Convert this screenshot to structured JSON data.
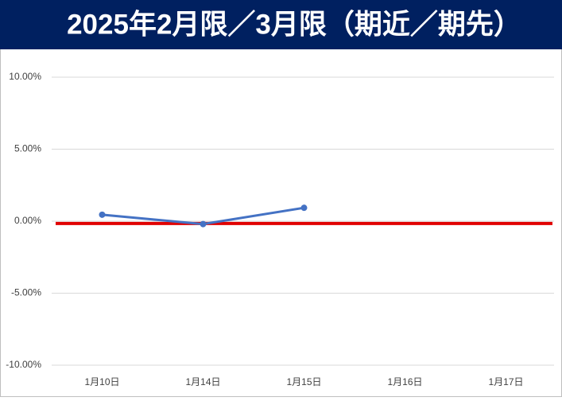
{
  "chart_data": {
    "type": "line",
    "title": "2025年2月限／3月限（期近／期先）",
    "categories": [
      "1月10日",
      "1月14日",
      "1月15日",
      "1月16日",
      "1月17日"
    ],
    "series": [
      {
        "color": "#4472c4",
        "values": [
          0.45,
          -0.2,
          0.93,
          null,
          null
        ]
      }
    ],
    "reference_line": {
      "value": -0.16,
      "color": "#e00000"
    },
    "ylim": [
      -10,
      10
    ],
    "yticks": [
      {
        "value": -10,
        "label": "-10.00%"
      },
      {
        "value": -5,
        "label": "-5.00%"
      },
      {
        "value": 0,
        "label": "0.00%"
      },
      {
        "value": 5,
        "label": "5.00%"
      },
      {
        "value": 10,
        "label": "10.00%"
      }
    ],
    "grid": true
  }
}
